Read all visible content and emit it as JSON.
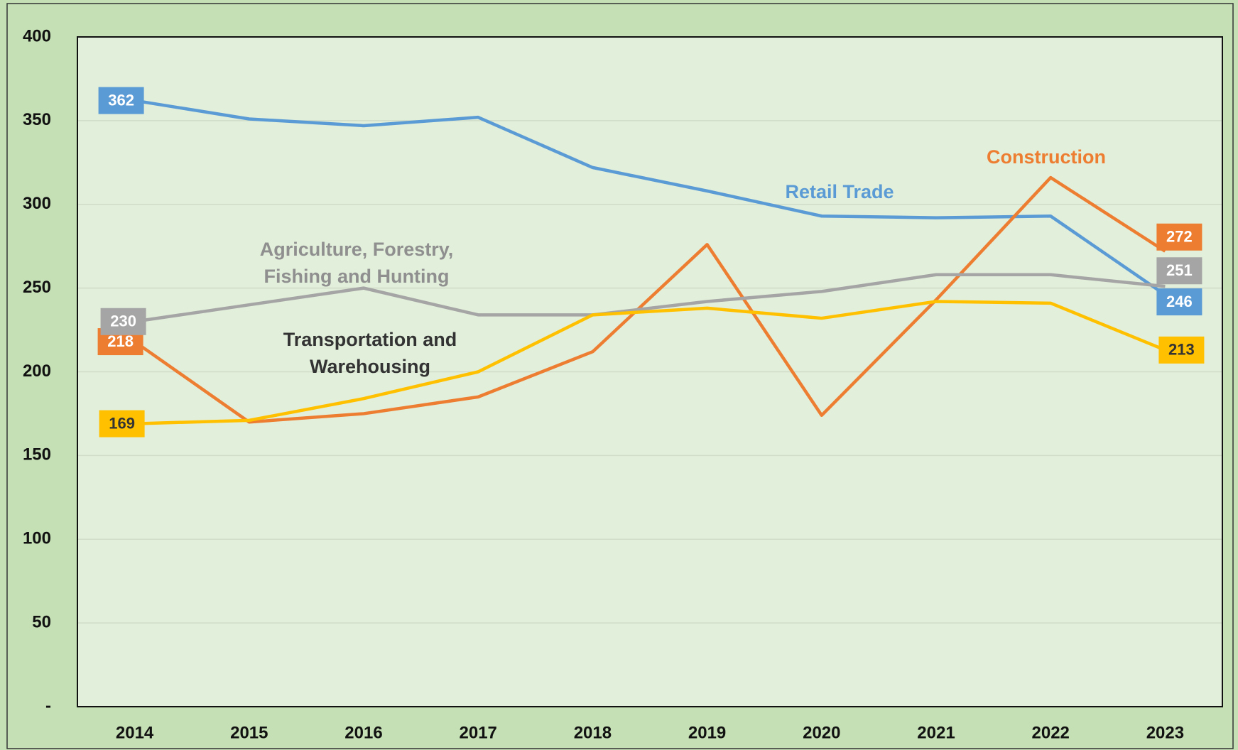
{
  "chart_data": {
    "type": "line",
    "categories": [
      "2014",
      "2015",
      "2016",
      "2017",
      "2018",
      "2019",
      "2020",
      "2021",
      "2022",
      "2023"
    ],
    "ylim": [
      0,
      400
    ],
    "yticks": [
      {
        "value": 0,
        "label": "-"
      },
      50,
      100,
      150,
      200,
      250,
      300,
      350,
      400
    ],
    "grid": true,
    "series": [
      {
        "name": "Retail Trade",
        "color": "#5b9bd5",
        "values": [
          362,
          351,
          347,
          352,
          322,
          308,
          293,
          292,
          293,
          246
        ],
        "value_labels": [
          "362",
          null,
          null,
          null,
          null,
          null,
          null,
          null,
          null,
          "246"
        ]
      },
      {
        "name": "Construction",
        "color": "#ed7d31",
        "values": [
          218,
          170,
          175,
          185,
          212,
          276,
          174,
          243,
          316,
          272
        ],
        "value_labels": [
          "218",
          null,
          null,
          null,
          null,
          null,
          null,
          null,
          null,
          "272"
        ]
      },
      {
        "name": "Agriculture, Forestry, Fishing and Hunting",
        "color": "#a5a5a5",
        "values": [
          230,
          240,
          250,
          234,
          234,
          242,
          248,
          258,
          258,
          251
        ],
        "value_labels": [
          "230",
          null,
          null,
          null,
          null,
          null,
          null,
          null,
          null,
          "251"
        ]
      },
      {
        "name": "Transportation and Warehousing",
        "color": "#ffc000",
        "values": [
          169,
          171,
          184,
          200,
          234,
          238,
          232,
          242,
          241,
          213
        ],
        "value_labels": [
          "169",
          null,
          null,
          null,
          null,
          null,
          null,
          null,
          null,
          "213"
        ]
      }
    ]
  }
}
